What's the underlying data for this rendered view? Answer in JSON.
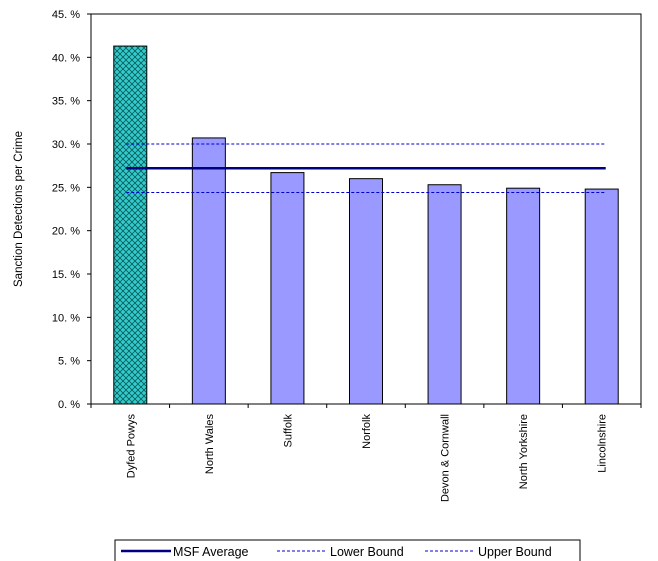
{
  "chart_data": {
    "type": "bar",
    "ylabel": "Sanction Detections per Crime",
    "ylim": [
      0,
      45
    ],
    "ytick_labels": [
      "0. %",
      "5. %",
      "10. %",
      "15. %",
      "20. %",
      "25. %",
      "30. %",
      "35. %",
      "40. %",
      "45. %"
    ],
    "categories": [
      "Dyfed Powys",
      "North Wales",
      "Suffolk",
      "Norfolk",
      "Devon & Cornwall",
      "North Yorkshire",
      "Lincolnshire"
    ],
    "values": [
      41.3,
      30.7,
      26.7,
      26.0,
      25.3,
      24.9,
      24.8
    ],
    "highlighted_category": "Dyfed Powys",
    "lines": [
      {
        "name": "MSF Average",
        "value": 27.2,
        "style": "solid"
      },
      {
        "name": "Lower Bound",
        "value": 24.4,
        "style": "dashed"
      },
      {
        "name": "Upper Bound",
        "value": 30.0,
        "style": "dashed"
      }
    ],
    "legend_position": "bottom",
    "grid": false,
    "colors": {
      "bar": "#9999ff",
      "highlight_bar": "#33cccc",
      "average_line": "#000080",
      "bound_line": "#0000cc"
    }
  }
}
